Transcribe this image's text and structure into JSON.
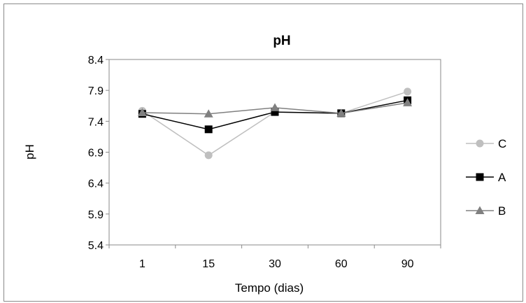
{
  "chart_data": {
    "type": "line",
    "title": "pH",
    "xlabel": "Tempo (dias)",
    "ylabel": "pH",
    "categories": [
      "1",
      "15",
      "30",
      "60",
      "90"
    ],
    "ylim": [
      5.4,
      8.4
    ],
    "yticks": [
      "8.4",
      "7.9",
      "7.4",
      "6.9",
      "6.4",
      "5.9",
      "5.4"
    ],
    "legend_position": "right",
    "series": [
      {
        "name": "C",
        "values": [
          7.57,
          6.85,
          7.55,
          7.53,
          7.88
        ],
        "color": "#bfbfbf",
        "marker": "circle"
      },
      {
        "name": "A",
        "values": [
          7.52,
          7.27,
          7.55,
          7.53,
          7.74
        ],
        "color": "#000000",
        "marker": "square"
      },
      {
        "name": "B",
        "values": [
          7.54,
          7.52,
          7.62,
          7.53,
          7.7
        ],
        "color": "#808080",
        "marker": "triangle"
      }
    ]
  }
}
